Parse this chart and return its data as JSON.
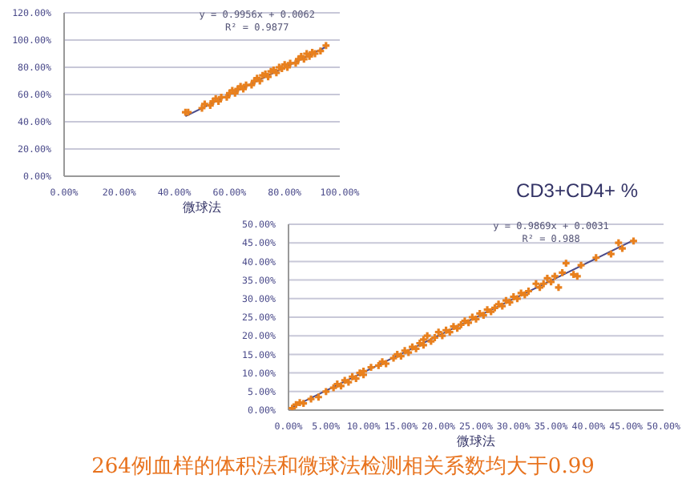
{
  "chart_data": [
    {
      "type": "scatter",
      "xlabel": "微球法",
      "grid": "y",
      "xlim": [
        0,
        1
      ],
      "ylim": [
        0,
        1.2
      ],
      "xticks": [
        {
          "value": 0,
          "label": "0.00%"
        },
        {
          "value": 0.2,
          "label": "20.00%"
        },
        {
          "value": 0.4,
          "label": "40.00%"
        },
        {
          "value": 0.6,
          "label": "60.00%"
        },
        {
          "value": 0.8,
          "label": "80.00%"
        },
        {
          "value": 1,
          "label": "100.00%"
        }
      ],
      "yticks": [
        {
          "value": 0,
          "label": "0.00%"
        },
        {
          "value": 0.2,
          "label": "20.00%"
        },
        {
          "value": 0.4,
          "label": "40.00%"
        },
        {
          "value": 0.6,
          "label": "60.00%"
        },
        {
          "value": 0.8,
          "label": "80.00%"
        },
        {
          "value": 1,
          "label": "100.00%"
        },
        {
          "value": 1.2,
          "label": "120.00%"
        }
      ],
      "annotations": [
        "y = 0.9956x + 0.0062",
        "R² = 0.9877"
      ],
      "series": [
        {
          "type": "scatter",
          "color": "#e8801e",
          "marker": "cross",
          "x": [
            0.44,
            0.45,
            0.5,
            0.51,
            0.53,
            0.54,
            0.55,
            0.56,
            0.57,
            0.59,
            0.6,
            0.61,
            0.62,
            0.63,
            0.64,
            0.65,
            0.66,
            0.68,
            0.69,
            0.7,
            0.71,
            0.72,
            0.73,
            0.74,
            0.75,
            0.76,
            0.77,
            0.78,
            0.79,
            0.8,
            0.81,
            0.82,
            0.84,
            0.85,
            0.86,
            0.87,
            0.88,
            0.89,
            0.9,
            0.91,
            0.93,
            0.95
          ],
          "values": [
            0.47,
            0.47,
            0.5,
            0.53,
            0.52,
            0.55,
            0.57,
            0.55,
            0.58,
            0.58,
            0.61,
            0.63,
            0.61,
            0.64,
            0.66,
            0.64,
            0.67,
            0.67,
            0.7,
            0.72,
            0.7,
            0.74,
            0.75,
            0.73,
            0.77,
            0.78,
            0.76,
            0.8,
            0.79,
            0.82,
            0.8,
            0.83,
            0.83,
            0.86,
            0.88,
            0.86,
            0.9,
            0.88,
            0.91,
            0.9,
            0.92,
            0.96
          ]
        },
        {
          "type": "line",
          "color": "#4a4a8a",
          "x": [
            0.44,
            0.95
          ],
          "values": [
            0.44,
            0.95
          ]
        }
      ]
    },
    {
      "type": "scatter",
      "title": "CD3+CD4+ %",
      "xlabel": "微球法",
      "grid": "y",
      "xlim": [
        0,
        0.5
      ],
      "ylim": [
        0,
        0.5
      ],
      "xticks": [
        {
          "value": 0,
          "label": "0.00%"
        },
        {
          "value": 0.05,
          "label": "5.00%"
        },
        {
          "value": 0.1,
          "label": "10.00%"
        },
        {
          "value": 0.15,
          "label": "15.00%"
        },
        {
          "value": 0.2,
          "label": "20.00%"
        },
        {
          "value": 0.25,
          "label": "25.00%"
        },
        {
          "value": 0.3,
          "label": "30.00%"
        },
        {
          "value": 0.35,
          "label": "35.00%"
        },
        {
          "value": 0.4,
          "label": "40.00%"
        },
        {
          "value": 0.45,
          "label": "45.00%"
        },
        {
          "value": 0.5,
          "label": "50.00%"
        }
      ],
      "yticks": [
        {
          "value": 0,
          "label": "0.00%"
        },
        {
          "value": 0.05,
          "label": "5.00%"
        },
        {
          "value": 0.1,
          "label": "10.00%"
        },
        {
          "value": 0.15,
          "label": "15.00%"
        },
        {
          "value": 0.2,
          "label": "20.00%"
        },
        {
          "value": 0.25,
          "label": "25.00%"
        },
        {
          "value": 0.3,
          "label": "30.00%"
        },
        {
          "value": 0.35,
          "label": "35.00%"
        },
        {
          "value": 0.4,
          "label": "40.00%"
        },
        {
          "value": 0.45,
          "label": "45.00%"
        },
        {
          "value": 0.5,
          "label": "50.00%"
        }
      ],
      "annotations": [
        "y = 0.9869x + 0.0031",
        "R² = 0.988"
      ],
      "series": [
        {
          "type": "scatter",
          "color": "#e8801e",
          "marker": "cross",
          "x": [
            0.005,
            0.01,
            0.015,
            0.02,
            0.03,
            0.04,
            0.05,
            0.06,
            0.065,
            0.07,
            0.075,
            0.08,
            0.085,
            0.09,
            0.095,
            0.1,
            0.1,
            0.11,
            0.12,
            0.125,
            0.13,
            0.14,
            0.145,
            0.15,
            0.155,
            0.16,
            0.165,
            0.17,
            0.175,
            0.18,
            0.18,
            0.185,
            0.19,
            0.195,
            0.2,
            0.205,
            0.21,
            0.215,
            0.22,
            0.225,
            0.23,
            0.235,
            0.24,
            0.245,
            0.25,
            0.255,
            0.26,
            0.265,
            0.27,
            0.275,
            0.28,
            0.285,
            0.29,
            0.295,
            0.3,
            0.305,
            0.31,
            0.315,
            0.32,
            0.33,
            0.335,
            0.34,
            0.345,
            0.35,
            0.355,
            0.36,
            0.365,
            0.37,
            0.38,
            0.385,
            0.39,
            0.41,
            0.43,
            0.44,
            0.445,
            0.46
          ],
          "values": [
            0.005,
            0.015,
            0.02,
            0.018,
            0.03,
            0.035,
            0.05,
            0.06,
            0.07,
            0.065,
            0.08,
            0.075,
            0.09,
            0.085,
            0.1,
            0.095,
            0.105,
            0.115,
            0.12,
            0.13,
            0.125,
            0.14,
            0.15,
            0.145,
            0.16,
            0.155,
            0.17,
            0.165,
            0.18,
            0.175,
            0.19,
            0.2,
            0.185,
            0.195,
            0.21,
            0.2,
            0.215,
            0.21,
            0.225,
            0.22,
            0.23,
            0.24,
            0.235,
            0.25,
            0.245,
            0.26,
            0.255,
            0.27,
            0.265,
            0.275,
            0.285,
            0.28,
            0.295,
            0.29,
            0.305,
            0.3,
            0.315,
            0.31,
            0.32,
            0.34,
            0.33,
            0.34,
            0.355,
            0.345,
            0.36,
            0.33,
            0.37,
            0.395,
            0.365,
            0.36,
            0.39,
            0.41,
            0.42,
            0.45,
            0.435,
            0.455
          ]
        },
        {
          "type": "line",
          "color": "#4a4a8a",
          "x": [
            0,
            0.46
          ],
          "values": [
            0.003,
            0.457
          ]
        }
      ]
    },
    {
      "type": "other",
      "annotations": [
        "264例血样的体积法和微球法检测相关系数均大于0.99"
      ]
    }
  ]
}
